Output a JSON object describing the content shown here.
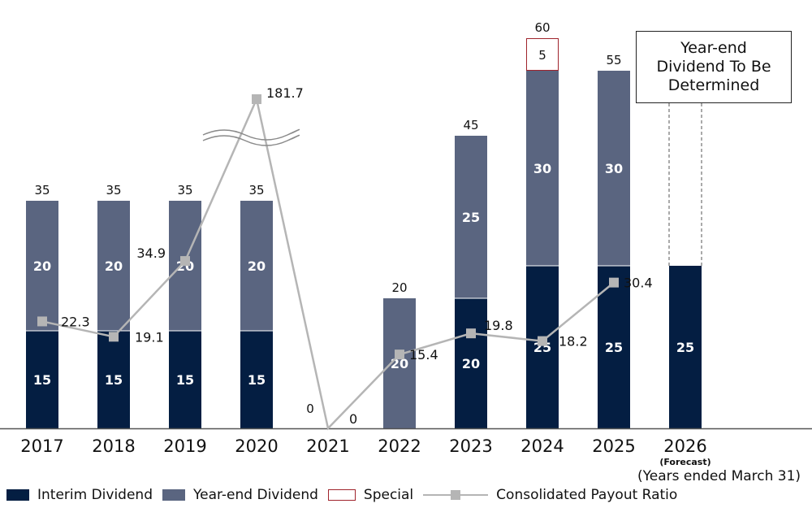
{
  "chart_data": {
    "type": "bar",
    "stacked": true,
    "categories": [
      "2017",
      "2018",
      "2019",
      "2020",
      "2021",
      "2022",
      "2023",
      "2024",
      "2025",
      "2026"
    ],
    "forecast_label": "(Forecast)",
    "series": [
      {
        "name": "Interim Dividend",
        "values": [
          15,
          15,
          15,
          15,
          0,
          0,
          20,
          25,
          25,
          25
        ]
      },
      {
        "name": "Year-end Dividend",
        "values": [
          20,
          20,
          20,
          20,
          0,
          20,
          25,
          30,
          30,
          null
        ]
      },
      {
        "name": "Special",
        "values": [
          0,
          0,
          0,
          0,
          0,
          0,
          0,
          5,
          0,
          null
        ]
      }
    ],
    "totals": [
      "35",
      "35",
      "35",
      "35",
      "0",
      "20",
      "45",
      "60",
      "55",
      null
    ],
    "payout_ratio": {
      "name": "Consolidated Payout Ratio",
      "values": [
        22.3,
        19.1,
        34.9,
        181.7,
        0,
        15.4,
        19.8,
        18.2,
        30.4,
        null
      ],
      "labels": [
        "22.3",
        "19.1",
        "34.9",
        "181.7",
        "0",
        "15.4",
        "19.8",
        "18.2",
        "30.4",
        null
      ],
      "axis_break": true
    },
    "annotation": "Year-end Dividend To Be Determined",
    "xlabel": "(Years ended March 31)",
    "ylim": [
      0,
      70
    ],
    "colors": {
      "interim": "#041e42",
      "yearend": "#5a6580",
      "special_border": "#a0242c",
      "line": "#b5b5b5"
    }
  },
  "legend": {
    "interim": "Interim Dividend",
    "yearend": "Year-end Dividend",
    "special": "Special",
    "payout": "Consolidated Payout Ratio"
  }
}
